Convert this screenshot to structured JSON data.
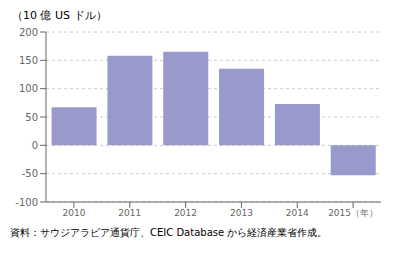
{
  "chart_data": {
    "type": "bar",
    "categories": [
      "2010",
      "2011",
      "2012",
      "2013",
      "2014",
      "2015（年）"
    ],
    "values": [
      67,
      158,
      165,
      135,
      73,
      -53
    ],
    "color": "#9999cc",
    "ylim": [
      -100,
      200
    ],
    "yticks": [
      -100,
      -50,
      0,
      50,
      100,
      150,
      200
    ],
    "ylabel": "（10 億 US ドル）",
    "caption": "資料：サウジアラビア通貨庁、CEIC Database から経済産業省作成。",
    "grid": true
  }
}
